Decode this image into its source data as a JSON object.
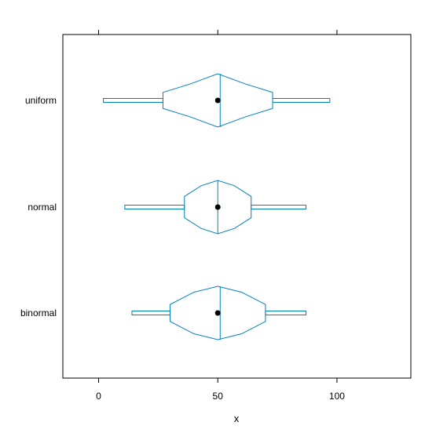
{
  "chart_data": {
    "type": "violin-box",
    "title": "",
    "xlabel": "x",
    "ylabel": "",
    "xlim": [
      -15,
      131
    ],
    "x_ticks": [
      0,
      50,
      100
    ],
    "grid": false,
    "legend": "none",
    "colors": {
      "box": "#0080c0",
      "median_dot": "#000000",
      "frame": "#000000"
    },
    "categories": [
      "uniform",
      "normal",
      "binormal"
    ],
    "series": [
      {
        "label": "uniform",
        "whisker_low": 2,
        "q1": 27,
        "median": 50,
        "q3": 73,
        "whisker_high": 97,
        "median_line": 51,
        "halfwidth": [
          0.3,
          0.62,
          1.0,
          0.62,
          0.3
        ]
      },
      {
        "label": "normal",
        "whisker_low": 11,
        "q1": 36,
        "median": 50,
        "q3": 64,
        "whisker_high": 87,
        "median_line": 50,
        "halfwidth": [
          0.4,
          0.8,
          1.0,
          0.8,
          0.4
        ]
      },
      {
        "label": "binormal",
        "whisker_low": 14,
        "q1": 30,
        "median": 50,
        "q3": 70,
        "whisker_high": 87,
        "median_line": 51,
        "halfwidth": [
          0.32,
          0.78,
          1.0,
          0.78,
          0.32
        ]
      }
    ]
  }
}
